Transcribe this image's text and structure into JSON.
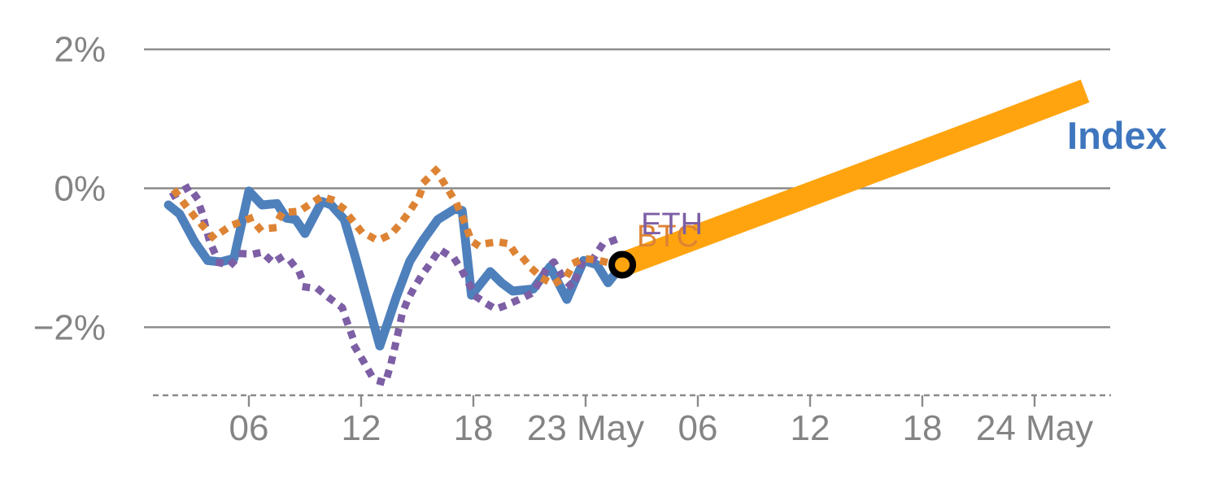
{
  "chart_data": {
    "type": "line",
    "title": "",
    "xlabel": "",
    "ylabel": "",
    "grid": true,
    "legend": "inline-labels-at-line-ends",
    "x_axis": {
      "tick_positions_hours": [
        6,
        12,
        18,
        24,
        30,
        36,
        42,
        48
      ],
      "tick_labels": [
        "06",
        "12",
        "18",
        "23 May",
        "06",
        "12",
        "18",
        "24 May"
      ],
      "axis_style": "dashed"
    },
    "y_axis": {
      "tick_values": [
        2,
        0,
        -2
      ],
      "tick_labels": [
        "2%",
        "0%",
        "−2%"
      ],
      "ylim": [
        -3.0,
        2.3
      ]
    },
    "style": {
      "grid_color": "#8A8A8A",
      "tick_text_color": "#848484",
      "background": "#ffffff"
    },
    "series": [
      {
        "name": "Index",
        "line_style": "solid",
        "color": "#4E80BC",
        "points": [
          [
            1.7,
            -0.24
          ],
          [
            2.3,
            -0.37
          ],
          [
            3.1,
            -0.77
          ],
          [
            3.8,
            -1.04
          ],
          [
            4.5,
            -1.06
          ],
          [
            5.2,
            -1.01
          ],
          [
            6.0,
            -0.04
          ],
          [
            6.7,
            -0.24
          ],
          [
            7.5,
            -0.22
          ],
          [
            8.0,
            -0.43
          ],
          [
            8.5,
            -0.45
          ],
          [
            9.0,
            -0.65
          ],
          [
            9.9,
            -0.19
          ],
          [
            10.4,
            -0.24
          ],
          [
            11.1,
            -0.45
          ],
          [
            11.7,
            -1.0
          ],
          [
            13.0,
            -2.27
          ],
          [
            13.9,
            -1.55
          ],
          [
            14.6,
            -1.05
          ],
          [
            15.3,
            -0.75
          ],
          [
            16.1,
            -0.45
          ],
          [
            17.0,
            -0.3
          ],
          [
            17.4,
            -0.32
          ],
          [
            17.9,
            -1.54
          ],
          [
            18.9,
            -1.2
          ],
          [
            19.5,
            -1.36
          ],
          [
            20.1,
            -1.48
          ],
          [
            21.2,
            -1.45
          ],
          [
            22.1,
            -1.13
          ],
          [
            23.0,
            -1.6
          ],
          [
            23.9,
            -1.04
          ],
          [
            24.6,
            -1.1
          ],
          [
            25.2,
            -1.36
          ],
          [
            25.96,
            -1.1
          ]
        ]
      },
      {
        "name": "ETH",
        "line_style": "dotted",
        "color": "#7D5FA5",
        "points": [
          [
            2.0,
            -0.1
          ],
          [
            2.8,
            0.02
          ],
          [
            3.2,
            -0.13
          ],
          [
            3.5,
            -0.35
          ],
          [
            3.7,
            -0.57
          ],
          [
            3.9,
            -0.76
          ],
          [
            4.4,
            -1.07
          ],
          [
            5.0,
            -1.11
          ],
          [
            5.6,
            -0.94
          ],
          [
            6.2,
            -0.95
          ],
          [
            6.7,
            -0.92
          ],
          [
            7.3,
            -1.07
          ],
          [
            7.7,
            -1.0
          ],
          [
            8.2,
            -1.04
          ],
          [
            8.7,
            -1.21
          ],
          [
            9.0,
            -1.42
          ],
          [
            9.7,
            -1.45
          ],
          [
            10.2,
            -1.56
          ],
          [
            11.0,
            -1.72
          ],
          [
            11.2,
            -1.89
          ],
          [
            11.5,
            -2.11
          ],
          [
            11.7,
            -2.3
          ],
          [
            12.1,
            -2.48
          ],
          [
            12.5,
            -2.67
          ],
          [
            12.9,
            -2.77
          ],
          [
            13.3,
            -2.8
          ],
          [
            13.6,
            -2.52
          ],
          [
            13.8,
            -2.29
          ],
          [
            14.0,
            -2.05
          ],
          [
            14.2,
            -1.8
          ],
          [
            14.5,
            -1.6
          ],
          [
            14.8,
            -1.45
          ],
          [
            15.2,
            -1.27
          ],
          [
            15.6,
            -1.12
          ],
          [
            16.2,
            -0.88
          ],
          [
            17.0,
            -1.02
          ],
          [
            17.4,
            -1.19
          ],
          [
            17.8,
            -1.39
          ],
          [
            18.2,
            -1.57
          ],
          [
            18.7,
            -1.66
          ],
          [
            19.2,
            -1.74
          ],
          [
            19.7,
            -1.69
          ],
          [
            20.2,
            -1.63
          ],
          [
            20.7,
            -1.57
          ],
          [
            21.2,
            -1.5
          ],
          [
            21.9,
            -1.16
          ],
          [
            22.3,
            -1.06
          ],
          [
            22.8,
            -1.29
          ],
          [
            23.3,
            -1.43
          ],
          [
            23.8,
            -1.08
          ],
          [
            24.3,
            -1.06
          ],
          [
            24.9,
            -0.81
          ],
          [
            25.5,
            -0.75
          ]
        ]
      },
      {
        "name": "BTC",
        "line_style": "dotted",
        "color": "#DD8334",
        "points": [
          [
            2.1,
            -0.06
          ],
          [
            2.6,
            -0.24
          ],
          [
            3.1,
            -0.41
          ],
          [
            3.7,
            -0.59
          ],
          [
            4.1,
            -0.71
          ],
          [
            4.7,
            -0.6
          ],
          [
            5.3,
            -0.51
          ],
          [
            6.1,
            -0.43
          ],
          [
            6.6,
            -0.59
          ],
          [
            7.3,
            -0.57
          ],
          [
            7.8,
            -0.35
          ],
          [
            8.7,
            -0.33
          ],
          [
            9.2,
            -0.24
          ],
          [
            9.9,
            -0.12
          ],
          [
            10.4,
            -0.16
          ],
          [
            11.0,
            -0.28
          ],
          [
            11.5,
            -0.45
          ],
          [
            12.0,
            -0.62
          ],
          [
            12.6,
            -0.71
          ],
          [
            13.0,
            -0.74
          ],
          [
            13.6,
            -0.66
          ],
          [
            14.1,
            -0.51
          ],
          [
            14.6,
            -0.33
          ],
          [
            15.1,
            -0.12
          ],
          [
            15.4,
            0.1
          ],
          [
            16.0,
            0.26
          ],
          [
            16.7,
            -0.04
          ],
          [
            17.1,
            -0.22
          ],
          [
            17.5,
            -0.47
          ],
          [
            17.9,
            -0.76
          ],
          [
            18.3,
            -0.83
          ],
          [
            18.8,
            -0.79
          ],
          [
            19.3,
            -0.77
          ],
          [
            19.9,
            -0.8
          ],
          [
            20.2,
            -0.92
          ],
          [
            20.7,
            -1.02
          ],
          [
            21.1,
            -1.15
          ],
          [
            21.7,
            -1.3
          ],
          [
            22.3,
            -1.38
          ],
          [
            23.0,
            -1.26
          ],
          [
            23.4,
            -1.07
          ],
          [
            23.9,
            -1.01
          ],
          [
            24.6,
            -1.03
          ],
          [
            25.2,
            -1.07
          ],
          [
            25.96,
            -1.1
          ]
        ]
      }
    ],
    "projection": {
      "name": "Index projection band",
      "color": "#FFA40F",
      "points": [
        [
          25.96,
          -1.1
        ],
        [
          46.0,
          0.92
        ],
        [
          50.7,
          1.4
        ]
      ]
    },
    "marker": {
      "t": 25.96,
      "v": -1.1,
      "fill": "#FFA40F",
      "ring_color": "#000000"
    },
    "annotations": [
      {
        "text": "ETH",
        "color": "#7D5FA5",
        "t": 26.96,
        "v": -0.3
      },
      {
        "text": "BTC",
        "color": "#DD8334",
        "t": 26.74,
        "v": -0.475
      },
      {
        "text": "Index",
        "color": "#3E76BE",
        "t": 49.74,
        "v": 1.04
      }
    ]
  }
}
